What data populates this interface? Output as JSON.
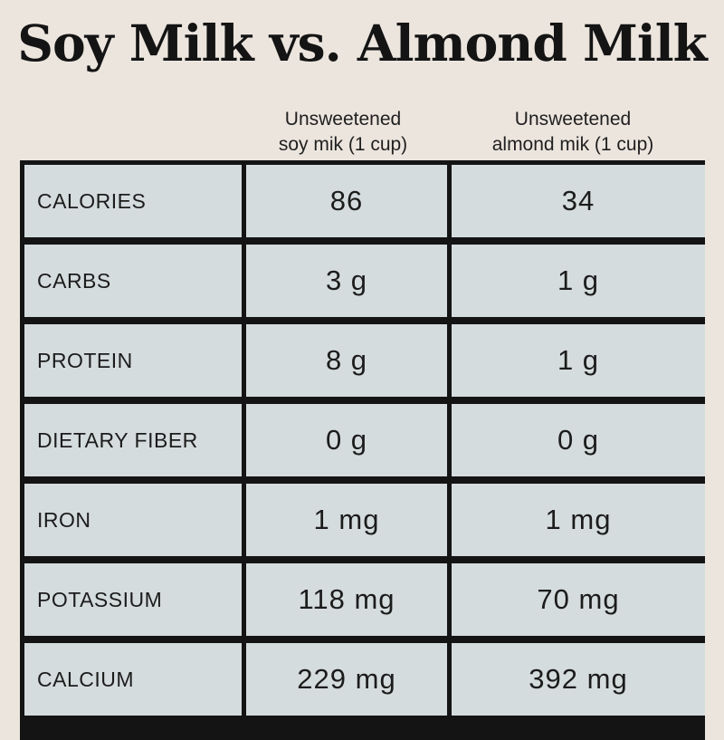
{
  "chart_data": {
    "type": "table",
    "title": "Soy Milk vs. Almond Milk",
    "columns": [
      {
        "line1": "Unsweetened",
        "line2": "soy mik (1 cup)"
      },
      {
        "line1": "Unsweetened",
        "line2": "almond mik (1 cup)"
      }
    ],
    "rows": [
      {
        "label": "CALORIES",
        "soy": "86",
        "almond": "34"
      },
      {
        "label": "CARBS",
        "soy": "3 g",
        "almond": "1 g"
      },
      {
        "label": "PROTEIN",
        "soy": "8 g",
        "almond": "1 g"
      },
      {
        "label": "DIETARY FIBER",
        "soy": "0 g",
        "almond": "0 g"
      },
      {
        "label": "IRON",
        "soy": "1 mg",
        "almond": "1 mg"
      },
      {
        "label": "POTASSIUM",
        "soy": "118 mg",
        "almond": "70 mg"
      },
      {
        "label": "CALCIUM",
        "soy": "229 mg",
        "almond": "392 mg"
      }
    ]
  },
  "colors": {
    "background": "#ece5de",
    "cell": "#d5dcdd",
    "border": "#141414"
  }
}
